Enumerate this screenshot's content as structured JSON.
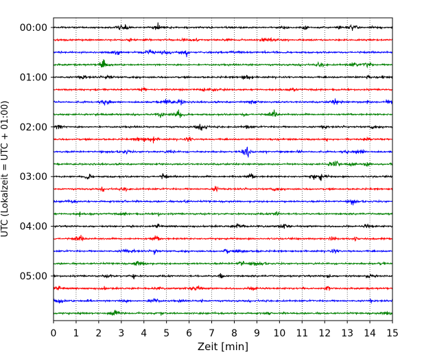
{
  "chart_data": {
    "type": "line",
    "chart_kind": "seismogram-helicorder",
    "xlabel": "Zeit  [min]",
    "ylabel": "UTC (Lokalzeit = UTC + 01:00)",
    "xlim": [
      0,
      15
    ],
    "x_ticks": [
      0,
      1,
      2,
      3,
      4,
      5,
      6,
      7,
      8,
      9,
      10,
      11,
      12,
      13,
      14,
      15
    ],
    "x_tick_labels": [
      "0",
      "1",
      "2",
      "3",
      "4",
      "5",
      "6",
      "7",
      "8",
      "9",
      "10",
      "11",
      "12",
      "13",
      "14",
      "15"
    ],
    "y_tick_labels": [
      "00:00",
      "01:00",
      "02:00",
      "03:00",
      "04:00",
      "05:00"
    ],
    "traces_per_hour": 4,
    "trace_minutes": 15,
    "grid": "vertical dotted at each minute",
    "colors": [
      "#000000",
      "#ff0000",
      "#0000ff",
      "#008000"
    ],
    "traces": [
      {
        "start": "00:00",
        "color": "#000000"
      },
      {
        "start": "00:15",
        "color": "#ff0000"
      },
      {
        "start": "00:30",
        "color": "#0000ff"
      },
      {
        "start": "00:45",
        "color": "#008000"
      },
      {
        "start": "01:00",
        "color": "#000000"
      },
      {
        "start": "01:15",
        "color": "#ff0000"
      },
      {
        "start": "01:30",
        "color": "#0000ff"
      },
      {
        "start": "01:45",
        "color": "#008000"
      },
      {
        "start": "02:00",
        "color": "#000000"
      },
      {
        "start": "02:15",
        "color": "#ff0000"
      },
      {
        "start": "02:30",
        "color": "#0000ff"
      },
      {
        "start": "02:45",
        "color": "#008000"
      },
      {
        "start": "03:00",
        "color": "#000000"
      },
      {
        "start": "03:15",
        "color": "#ff0000"
      },
      {
        "start": "03:30",
        "color": "#0000ff"
      },
      {
        "start": "03:45",
        "color": "#008000"
      },
      {
        "start": "04:00",
        "color": "#000000"
      },
      {
        "start": "04:15",
        "color": "#ff0000"
      },
      {
        "start": "04:30",
        "color": "#0000ff"
      },
      {
        "start": "04:45",
        "color": "#008000"
      },
      {
        "start": "05:00",
        "color": "#000000"
      },
      {
        "start": "05:15",
        "color": "#ff0000"
      },
      {
        "start": "05:30",
        "color": "#0000ff"
      },
      {
        "start": "05:45",
        "color": "#008000"
      }
    ]
  }
}
